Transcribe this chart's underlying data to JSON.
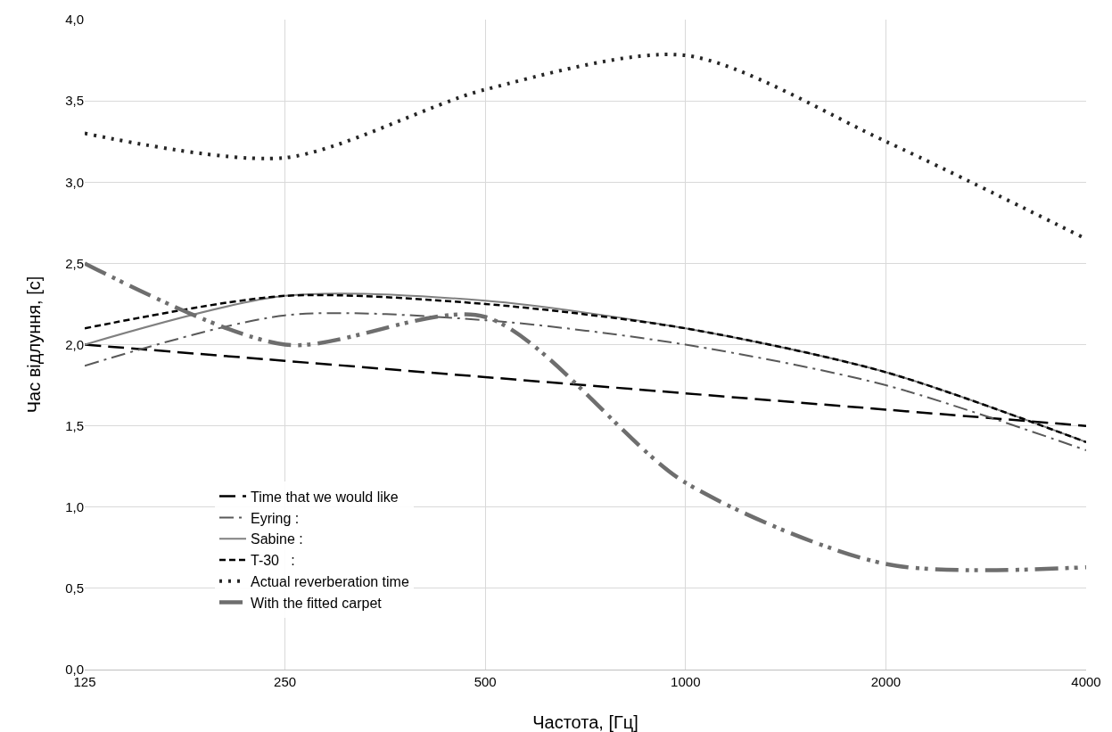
{
  "chart_data": {
    "type": "line",
    "xlabel": "Частота, [Гц]",
    "ylabel": "Час відлуння, [с]",
    "categories": [
      "125",
      "250",
      "500",
      "1000",
      "2000",
      "4000"
    ],
    "ylim": [
      0,
      4
    ],
    "yticks": [
      {
        "value": 0,
        "label": "0,0"
      },
      {
        "value": 0.5,
        "label": "0,5"
      },
      {
        "value": 1,
        "label": "1,0"
      },
      {
        "value": 1.5,
        "label": "1,5"
      },
      {
        "value": 2,
        "label": "2,0"
      },
      {
        "value": 2.5,
        "label": "2,5"
      },
      {
        "value": 3,
        "label": "3,0"
      },
      {
        "value": 3.5,
        "label": "3,5"
      },
      {
        "value": 4,
        "label": "4,0"
      }
    ],
    "grid": true,
    "legend": "bottom left",
    "marker": "none",
    "series": [
      {
        "name": "Time that we would like",
        "color": "#000000",
        "line_style": "dashed",
        "values": [
          2.0,
          1.9,
          1.8,
          1.7,
          1.6,
          1.5
        ]
      },
      {
        "name": "Eyring :",
        "color": "#595959",
        "line_style": "dashdot",
        "values": [
          1.87,
          2.18,
          2.15,
          2.0,
          1.75,
          1.35
        ]
      },
      {
        "name": "Sabine :",
        "color": "#808080",
        "line_style": "solid",
        "values": [
          2.0,
          2.3,
          2.27,
          2.1,
          1.83,
          1.4
        ]
      },
      {
        "name": "T-30   :",
        "color": "#000000",
        "line_style": "shortdash",
        "values": [
          2.1,
          2.3,
          2.25,
          2.1,
          1.83,
          1.4
        ]
      },
      {
        "name": "Actual reverberation time",
        "color": "#262626",
        "line_style": "dotted",
        "values": [
          3.3,
          3.15,
          3.57,
          3.78,
          3.25,
          2.65
        ]
      },
      {
        "name": "With the fitted carpet",
        "color": "#6e6e6e",
        "line_style": "dashdotdot",
        "values": [
          2.5,
          2.0,
          2.17,
          1.15,
          0.65,
          0.63
        ]
      }
    ]
  }
}
